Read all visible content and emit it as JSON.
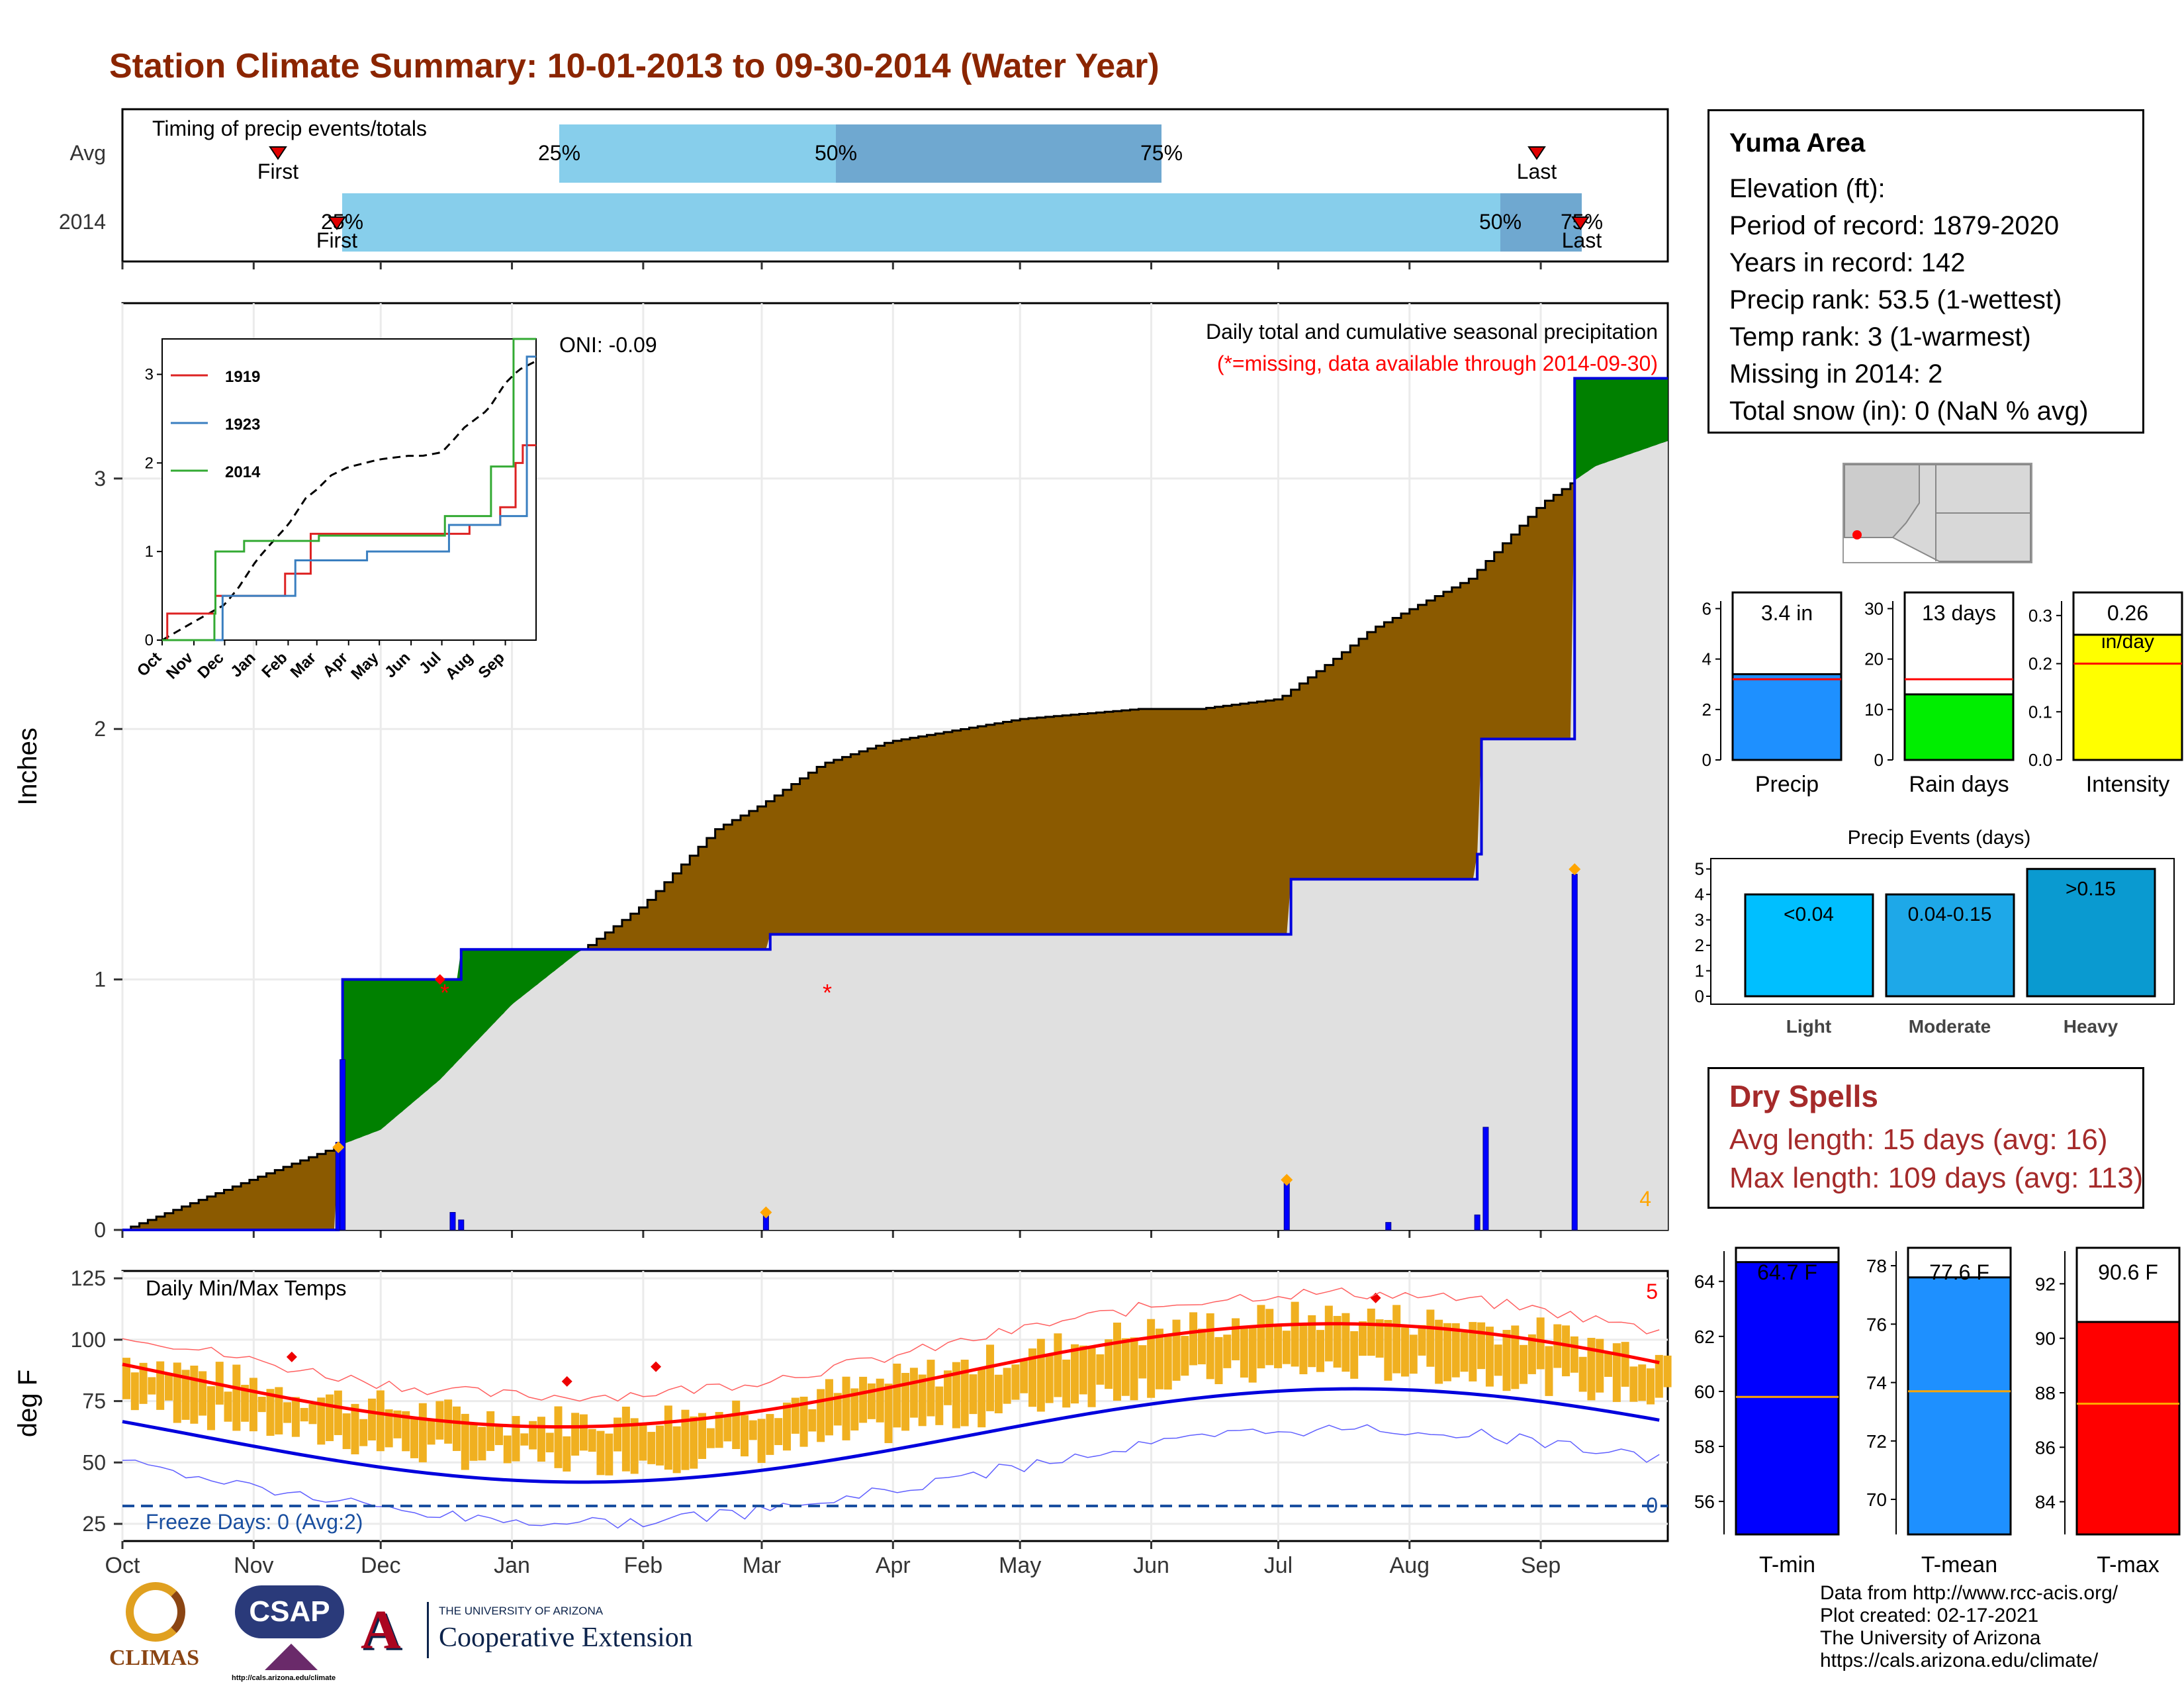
{
  "title": "Station Climate Summary: 10-01-2013 to 09-30-2014 (Water Year)",
  "colors": {
    "title": "#8b2500",
    "avg_bar": "#87ceeb",
    "mid_bar": "#6fa8d0",
    "cum_brown": "#8b5a00",
    "cum_green": "#008000",
    "precip_bar": "#0000ff",
    "marker": "#ffa500",
    "tmax": "#ff0000",
    "tmin": "#0000ff",
    "range": "#f0b020"
  },
  "timing": {
    "header": "Timing of precip events/totals",
    "rows": [
      "Avg",
      "2014"
    ],
    "avg_labels": {
      "p25": "25%",
      "p50": "50%",
      "p75": "75%",
      "first": "First",
      "last": "Last"
    },
    "y2014_labels": {
      "p25": "25%",
      "p50": "50%",
      "p75": "75%",
      "first": "First",
      "last": "Last"
    }
  },
  "precip": {
    "ylabel": "Inches",
    "yticks": [
      "0",
      "1",
      "2",
      "3"
    ],
    "header": "Daily total and cumulative seasonal precipitation",
    "note": "(*=missing, data available through 2014-09-30)",
    "oni": "ONI: -0.09",
    "corner_count": "4"
  },
  "inset": {
    "yticks": [
      "0",
      "1",
      "2",
      "3"
    ],
    "xticks": [
      "Oct",
      "Nov",
      "Dec",
      "Jan",
      "Feb",
      "Mar",
      "Apr",
      "May",
      "Jun",
      "Jul",
      "Aug",
      "Sep"
    ],
    "legend": [
      "1919",
      "1923",
      "2014"
    ]
  },
  "temps": {
    "ylabel": "deg F",
    "yticks": [
      "25",
      "50",
      "75",
      "100",
      "125"
    ],
    "header": "Daily Min/Max Temps",
    "freeze": "Freeze Days: 0 (Avg:2)",
    "count_top": "5",
    "count_bottom": "0"
  },
  "months": [
    "Oct",
    "Nov",
    "Dec",
    "Jan",
    "Feb",
    "Mar",
    "Apr",
    "May",
    "Jun",
    "Jul",
    "Aug",
    "Sep"
  ],
  "station": {
    "name": "Yuma Area",
    "lines": [
      "Elevation (ft):",
      "Period of record: 1879-2020",
      "Years in record: 142",
      "Precip rank: 53.5 (1-wettest)",
      "Temp rank: 3 (1-warmest)",
      "Missing in 2014: 2",
      "Total snow (in): 0 (NaN % avg)"
    ]
  },
  "mini_bars": {
    "precip": {
      "label": "Precip",
      "value_text": "3.4 in",
      "yticks": [
        "0",
        "2",
        "4",
        "6"
      ]
    },
    "raindays": {
      "label": "Rain days",
      "value_text": "13 days",
      "yticks": [
        "0",
        "10",
        "20",
        "30"
      ]
    },
    "intensity": {
      "label": "Intensity",
      "value_text": "0.26",
      "value_unit": "in/day",
      "yticks": [
        "0.0",
        "0.1",
        "0.2",
        "0.3"
      ]
    }
  },
  "events": {
    "title": "Precip Events (days)",
    "yticks": [
      "0",
      "1",
      "2",
      "3",
      "4",
      "5"
    ],
    "cats": [
      "Light",
      "Moderate",
      "Heavy"
    ],
    "labels": [
      "<0.04",
      "0.04-0.15",
      ">0.15"
    ]
  },
  "dry": {
    "header": "Dry Spells",
    "avg": "Avg length: 15 days (avg: 16)",
    "max": "Max length: 109 days (avg: 113)"
  },
  "tbars": {
    "tmin": {
      "label": "T-min",
      "value": "64.7 F",
      "yticks": [
        "56",
        "58",
        "60",
        "62",
        "64"
      ]
    },
    "tmean": {
      "label": "T-mean",
      "value": "77.6 F",
      "yticks": [
        "70",
        "72",
        "74",
        "76",
        "78"
      ]
    },
    "tmax": {
      "label": "T-max",
      "value": "90.6 F",
      "yticks": [
        "84",
        "86",
        "88",
        "90",
        "92"
      ]
    }
  },
  "footer": [
    "Data from http://www.rcc-acis.org/",
    "Plot created: 02-17-2021",
    "The University of Arizona",
    "https://cals.arizona.edu/climate/"
  ],
  "logos": {
    "climas": "CLIMAS",
    "csap": "CSAP",
    "csap_url": "http://cals.arizona.edu/climate",
    "ua_small": "THE UNIVERSITY OF ARIZONA",
    "ua_big": "Cooperative Extension"
  },
  "chart_data": [
    {
      "type": "line",
      "title": "Daily total and cumulative seasonal precipitation",
      "ylabel": "Inches",
      "ylim": [
        0,
        3.7
      ],
      "x_unit": "day of water year (Oct 1 = 0)",
      "series": [
        {
          "name": "cumulative avg",
          "x": [
            0,
            30,
            61,
            75,
            92,
            107,
            123,
            140,
            151,
            165,
            181,
            212,
            240,
            254,
            273,
            286,
            295,
            318,
            335,
            348,
            365
          ],
          "y": [
            0,
            0.2,
            0.4,
            0.6,
            0.9,
            1.1,
            1.3,
            1.6,
            1.7,
            1.86,
            1.95,
            2.04,
            2.08,
            2.08,
            2.12,
            2.28,
            2.4,
            2.6,
            2.9,
            3.05,
            3.15
          ]
        },
        {
          "name": "cumulative 2014",
          "x": [
            0,
            51,
            52,
            75,
            80,
            152,
            153,
            275,
            276,
            320,
            321,
            342,
            343,
            365
          ],
          "y": [
            0,
            0.3,
            1.0,
            1.0,
            1.12,
            1.12,
            1.18,
            1.18,
            1.4,
            1.5,
            1.96,
            1.96,
            3.4,
            3.4
          ]
        },
        {
          "name": "daily 2014",
          "x": [
            51,
            52,
            78,
            80,
            152,
            275,
            299,
            320,
            322,
            343
          ],
          "y": [
            0.35,
            0.68,
            0.07,
            0.04,
            0.06,
            0.2,
            0.03,
            0.06,
            0.41,
            1.42
          ]
        }
      ]
    },
    {
      "type": "bar",
      "title": "Precip Events (days)",
      "categories": [
        "Light",
        "Moderate",
        "Heavy"
      ],
      "values": [
        4,
        4,
        5
      ],
      "ylim": [
        0,
        5.2
      ]
    },
    {
      "type": "bar",
      "categories": [
        "Precip",
        "Rain days",
        "Intensity"
      ],
      "values": [
        3.4,
        13,
        0.26
      ]
    },
    {
      "type": "bar",
      "categories": [
        "T-min",
        "T-mean",
        "T-max"
      ],
      "values": [
        64.7,
        77.6,
        90.6
      ]
    }
  ]
}
